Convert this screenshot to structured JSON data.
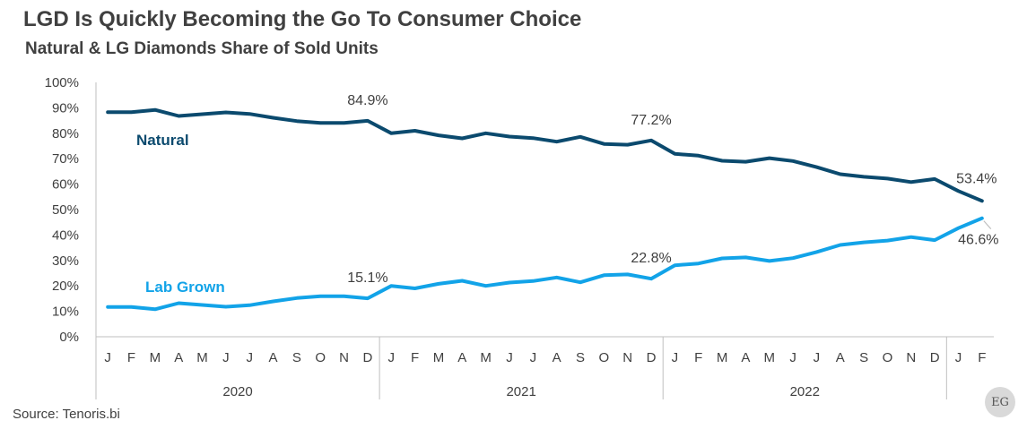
{
  "title": "LGD Is Quickly Becoming the Go To Consumer Choice",
  "subtitle": "Natural & LG Diamonds Share of Sold Units",
  "source": "Source: Tenoris.bi",
  "logo_text": "EG",
  "colors": {
    "natural": "#0b4a6e",
    "lab_grown": "#12a3e8",
    "axis": "#bfbfbf",
    "text": "#404040"
  },
  "chart_data": {
    "type": "line",
    "ylim": [
      0,
      100
    ],
    "yticks": [
      "0%",
      "10%",
      "20%",
      "30%",
      "40%",
      "50%",
      "60%",
      "70%",
      "80%",
      "90%",
      "100%"
    ],
    "months": [
      "J",
      "F",
      "M",
      "A",
      "M",
      "J",
      "J",
      "A",
      "S",
      "O",
      "N",
      "D",
      "J",
      "F",
      "M",
      "A",
      "M",
      "J",
      "J",
      "A",
      "S",
      "O",
      "N",
      "D",
      "J",
      "F",
      "M",
      "A",
      "M",
      "J",
      "J",
      "A",
      "S",
      "O",
      "N",
      "D",
      "J",
      "F"
    ],
    "years": [
      "2020",
      "2021",
      "2022"
    ],
    "series": [
      {
        "name": "Natural",
        "color": "#0b4a6e",
        "values": [
          88.3,
          88.3,
          89.2,
          86.8,
          87.5,
          88.2,
          87.6,
          86.1,
          84.8,
          84.1,
          84.1,
          84.9,
          80.0,
          81.0,
          79.2,
          78.0,
          80.0,
          78.7,
          78.1,
          76.7,
          78.6,
          75.8,
          75.5,
          77.2,
          71.9,
          71.2,
          69.2,
          68.8,
          70.2,
          69.1,
          66.7,
          63.9,
          62.9,
          62.2,
          60.8,
          62.0,
          57.3,
          53.4
        ]
      },
      {
        "name": "Lab Grown",
        "color": "#12a3e8",
        "values": [
          11.7,
          11.7,
          10.8,
          13.2,
          12.5,
          11.8,
          12.4,
          13.9,
          15.2,
          15.9,
          15.9,
          15.1,
          20.0,
          19.0,
          20.8,
          22.0,
          20.0,
          21.3,
          21.9,
          23.3,
          21.4,
          24.2,
          24.5,
          22.8,
          28.1,
          28.8,
          30.8,
          31.2,
          29.8,
          30.9,
          33.3,
          36.1,
          37.1,
          37.8,
          39.2,
          38.0,
          42.7,
          46.6
        ]
      }
    ],
    "annotations": [
      {
        "series": 0,
        "index": 11,
        "text": "84.9%"
      },
      {
        "series": 0,
        "index": 23,
        "text": "77.2%"
      },
      {
        "series": 0,
        "index": 37,
        "text": "53.4%"
      },
      {
        "series": 1,
        "index": 11,
        "text": "15.1%"
      },
      {
        "series": 1,
        "index": 23,
        "text": "22.8%"
      },
      {
        "series": 1,
        "index": 37,
        "text": "46.6%"
      }
    ]
  }
}
